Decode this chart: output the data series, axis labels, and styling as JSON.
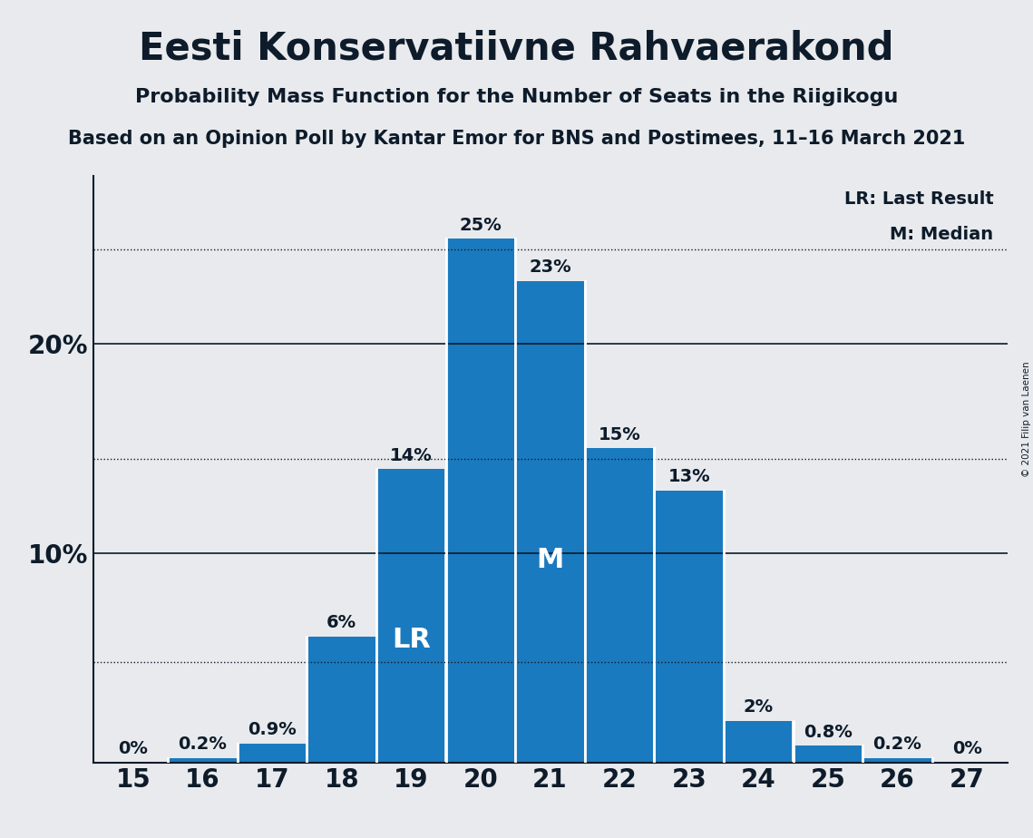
{
  "title": "Eesti Konservatiivne Rahvaerakond",
  "subtitle1": "Probability Mass Function for the Number of Seats in the Riigikogu",
  "subtitle2": "Based on an Opinion Poll by Kantar Emor for BNS and Postimees, 11–16 March 2021",
  "copyright": "© 2021 Filip van Laenen",
  "seats": [
    15,
    16,
    17,
    18,
    19,
    20,
    21,
    22,
    23,
    24,
    25,
    26,
    27
  ],
  "probabilities": [
    0.0,
    0.2,
    0.9,
    6.0,
    14.0,
    25.0,
    23.0,
    15.0,
    13.0,
    2.0,
    0.8,
    0.2,
    0.0
  ],
  "bar_color": "#1a7abf",
  "background_color": "#e8eaed",
  "text_color": "#0d1b2a",
  "lr_seat": 19,
  "median_seat": 21,
  "solid_lines": [
    10.0,
    20.0
  ],
  "dotted_lines": [
    4.8,
    14.5,
    24.5
  ],
  "yticks": [
    10,
    20
  ],
  "ylim": [
    0,
    28
  ],
  "xlim_left": 14.42,
  "xlim_right": 27.58,
  "bar_width": 0.97,
  "legend_lr": "LR: Last Result",
  "legend_m": "M: Median"
}
